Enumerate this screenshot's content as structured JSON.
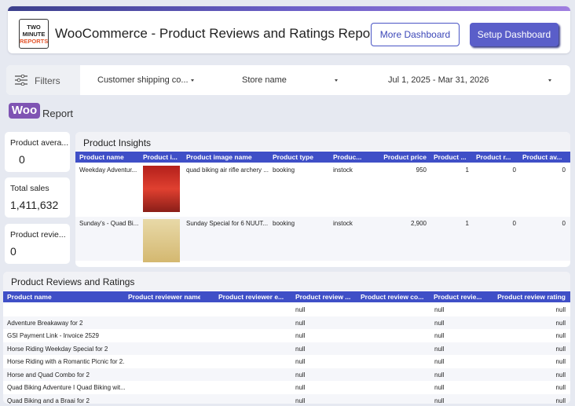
{
  "header": {
    "logo": [
      "TWO",
      "MINUTE",
      "REPORTS"
    ],
    "title": "WooCommerce - Product Reviews and Ratings Report",
    "buttons": [
      "More Dashboard",
      "Setup Dashboard"
    ]
  },
  "filters": {
    "label": "Filters",
    "controls": [
      "Customer shipping co...",
      "Store name",
      "Jul 1, 2025 - Mar 31, 2026"
    ]
  },
  "brand": {
    "badge": "Woo",
    "text": "Report"
  },
  "scorecards": [
    {
      "label": "Product avera...",
      "value": "0"
    },
    {
      "label": "Total sales",
      "value": "1,411,632"
    },
    {
      "label": "Product revie...",
      "value": "0"
    }
  ],
  "product_insights": {
    "title": "Product Insights",
    "columns": [
      "Product name",
      "Product i...",
      "Product image name",
      "Product type",
      "Produc...",
      "Product price",
      "Product ...",
      "Product r...",
      "Product av..."
    ],
    "rows": [
      [
        "Weekday Adventur...",
        "quad biking air rifle archery ...",
        "booking",
        "instock",
        "950",
        "1",
        "0",
        "0"
      ],
      [
        "Sunday's - Quad Bi...",
        "Sunday Special for 6 NUUT...",
        "booking",
        "instock",
        "2,900",
        "1",
        "0",
        "0"
      ]
    ]
  },
  "reviews": {
    "title": "Product Reviews and Ratings",
    "columns": [
      "Product name",
      "Product reviewer name",
      "Product reviewer e...",
      "Product review ...",
      "Product review co...",
      "Product revie...",
      "Product review rating"
    ],
    "rows": [
      {
        "values": [
          "null",
          "null",
          "null"
        ]
      },
      {
        "name": "Adventure Breakaway for 2",
        "values": [
          "null",
          "null",
          "null"
        ]
      },
      {
        "name": "GSI Payment Link - Invoice 2529",
        "values": [
          "null",
          "null",
          "null"
        ]
      },
      {
        "name": "Horse Riding Weekday Special for 2",
        "values": [
          "null",
          "null",
          "null"
        ]
      },
      {
        "name": "Horse Riding with a Romantic Picnic for 2...",
        "values": [
          "null",
          "null",
          "null"
        ]
      },
      {
        "name": "Horse and Quad Combo for 2",
        "values": [
          "null",
          "null",
          "null"
        ]
      },
      {
        "name": "Quad Biking Adventure I Quad Biking wit...",
        "values": [
          "null",
          "null",
          "null"
        ]
      },
      {
        "name": "Quad Biking and a Braai for 2",
        "values": [
          "null",
          "null",
          "null"
        ]
      }
    ]
  }
}
